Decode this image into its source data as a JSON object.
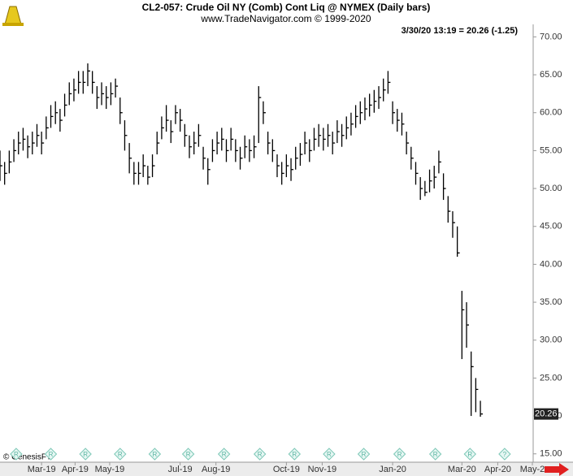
{
  "chart_data": {
    "type": "ohlc",
    "title": "CL2-057:  Crude Oil NY (Comb) Cont Liq @ NYMEX  (Daily bars)",
    "subtitle": "www.TradeNavigator.com © 1999-2020",
    "annotation": "3/30/20 13:19 = 20.26 (-1.25)",
    "credit": "© GenesisFT",
    "last_price": 20.26,
    "color": "#000000",
    "xlim": [
      0,
      461
    ],
    "ylim": [
      13.9,
      70.9
    ],
    "xticks": [
      {
        "value": 36,
        "label": "Mar-19"
      },
      {
        "value": 65,
        "label": "Apr-19"
      },
      {
        "value": 95,
        "label": "May-19"
      },
      {
        "value": 156,
        "label": "Jul-19"
      },
      {
        "value": 187,
        "label": "Aug-19"
      },
      {
        "value": 248,
        "label": "Oct-19"
      },
      {
        "value": 279,
        "label": "Nov-19"
      },
      {
        "value": 340,
        "label": "Jan-20"
      },
      {
        "value": 400,
        "label": "Mar-20"
      },
      {
        "value": 431,
        "label": "Apr-20"
      },
      {
        "value": 461,
        "label": "May-2"
      }
    ],
    "yticks": [
      {
        "value": 15,
        "label": "15.00"
      },
      {
        "value": 20,
        "label": "20.00"
      },
      {
        "value": 25,
        "label": "25.00"
      },
      {
        "value": 30,
        "label": "30.00"
      },
      {
        "value": 35,
        "label": "35.00"
      },
      {
        "value": 40,
        "label": "40.00"
      },
      {
        "value": 45,
        "label": "45.00"
      },
      {
        "value": 50,
        "label": "50.00"
      },
      {
        "value": 55,
        "label": "55.00"
      },
      {
        "value": 60,
        "label": "60.00"
      },
      {
        "value": 65,
        "label": "65.00"
      },
      {
        "value": 70,
        "label": "70.00"
      }
    ],
    "markers": {
      "x": [
        14,
        44,
        74,
        104,
        134,
        163,
        194,
        225,
        255,
        285,
        315,
        346,
        377,
        407,
        437
      ],
      "labels": [
        "R",
        "R",
        "R",
        "R",
        "R",
        "R",
        "R",
        "R",
        "R",
        "R",
        "R",
        "R",
        "R",
        "R",
        "?"
      ]
    },
    "x": [
      0,
      4,
      8,
      12,
      16,
      20,
      24,
      28,
      32,
      36,
      40,
      44,
      48,
      52,
      56,
      60,
      64,
      68,
      72,
      76,
      80,
      84,
      88,
      92,
      96,
      100,
      104,
      108,
      112,
      116,
      120,
      124,
      128,
      132,
      136,
      140,
      144,
      148,
      152,
      156,
      160,
      164,
      168,
      172,
      176,
      180,
      184,
      188,
      192,
      196,
      200,
      204,
      208,
      212,
      216,
      220,
      224,
      228,
      232,
      236,
      240,
      244,
      248,
      252,
      256,
      260,
      264,
      268,
      272,
      276,
      280,
      284,
      288,
      292,
      296,
      300,
      304,
      308,
      312,
      316,
      320,
      324,
      328,
      332,
      336,
      340,
      344,
      348,
      352,
      356,
      360,
      364,
      368,
      372,
      376,
      380,
      384,
      388,
      392,
      396,
      400,
      404,
      408,
      412,
      416
    ],
    "close": [
      53,
      52,
      53.5,
      55,
      56,
      56.5,
      55.5,
      56,
      57,
      56,
      58,
      59.5,
      60,
      59,
      61,
      62.5,
      63,
      64,
      64,
      65.5,
      64,
      62,
      62.5,
      62,
      62.5,
      63.5,
      60,
      57,
      54,
      52,
      52,
      53,
      51.5,
      53,
      56,
      58,
      59,
      57.5,
      60,
      59,
      57,
      55.5,
      56,
      57,
      54,
      52.5,
      55,
      56,
      56.5,
      55,
      56.5,
      55,
      54,
      55.5,
      55,
      55.5,
      62,
      60,
      56,
      55,
      53,
      52,
      53,
      52.5,
      54,
      54.5,
      56,
      55,
      56.5,
      57,
      56.5,
      57,
      56,
      57.5,
      57,
      58,
      58.5,
      59.5,
      60,
      60.5,
      61,
      61.5,
      62,
      63,
      64,
      60,
      59,
      58.5,
      56,
      54,
      52,
      50,
      49.5,
      51,
      51.5,
      53.5,
      50,
      47,
      45.5,
      41.5,
      34,
      32,
      26.5,
      23.5,
      20.26
    ],
    "high": [
      55,
      53.5,
      55,
      56.5,
      57.5,
      58,
      57,
      57.5,
      58.5,
      57.5,
      59.5,
      61,
      61.5,
      60.5,
      62.5,
      64,
      64.5,
      65.5,
      65.5,
      66.5,
      65.5,
      63.5,
      64,
      63.5,
      64,
      64.5,
      62,
      59,
      56,
      53.5,
      53.5,
      54.5,
      53,
      54.5,
      57.5,
      59.5,
      61,
      59,
      61,
      60.5,
      58.5,
      57,
      57.5,
      58.5,
      55.5,
      54,
      56.5,
      57.5,
      58,
      56.5,
      58,
      56.5,
      55.5,
      57,
      56.5,
      57,
      63.5,
      61.5,
      57.5,
      56.5,
      54.5,
      53.5,
      54.5,
      54,
      55.5,
      56,
      57.5,
      56.5,
      58,
      58.5,
      58,
      58.5,
      57.5,
      59,
      58.5,
      59.5,
      60,
      61,
      61.5,
      62,
      62.5,
      63,
      63.5,
      64.5,
      65.5,
      61.5,
      60.5,
      60,
      57.5,
      55.5,
      53.5,
      51.5,
      51,
      52.5,
      53,
      55,
      52,
      49,
      47,
      45,
      36.5,
      35,
      28.5,
      25,
      22
    ],
    "low": [
      51,
      50.5,
      52,
      53.5,
      54.5,
      55,
      54,
      54.5,
      55.5,
      54.5,
      56.5,
      58,
      58.5,
      57.5,
      59.5,
      61,
      61.5,
      62.5,
      62.5,
      63.5,
      62.5,
      60.5,
      61,
      60.5,
      61,
      62,
      58.5,
      55,
      52,
      50.5,
      50.5,
      51.5,
      50.5,
      51.5,
      54.5,
      56.5,
      57.5,
      56,
      58.5,
      57.5,
      55.5,
      54,
      54.5,
      55.5,
      52.5,
      50.5,
      53.5,
      54.5,
      55,
      53.5,
      55,
      53.5,
      52.5,
      54,
      53.5,
      54,
      56,
      58.5,
      54.5,
      53.5,
      51.5,
      50.5,
      51.5,
      51,
      52.5,
      53,
      54.5,
      53.5,
      55,
      55.5,
      55,
      55.5,
      54.5,
      56,
      55.5,
      56.5,
      57,
      58,
      58.5,
      59,
      59.5,
      60,
      60.5,
      61.5,
      62.5,
      58.5,
      57.5,
      57,
      54.5,
      52.5,
      50.5,
      48.5,
      49,
      49.5,
      50,
      52,
      48.5,
      45.5,
      43.5,
      41,
      27.5,
      29,
      20,
      20.5,
      19.9
    ]
  }
}
